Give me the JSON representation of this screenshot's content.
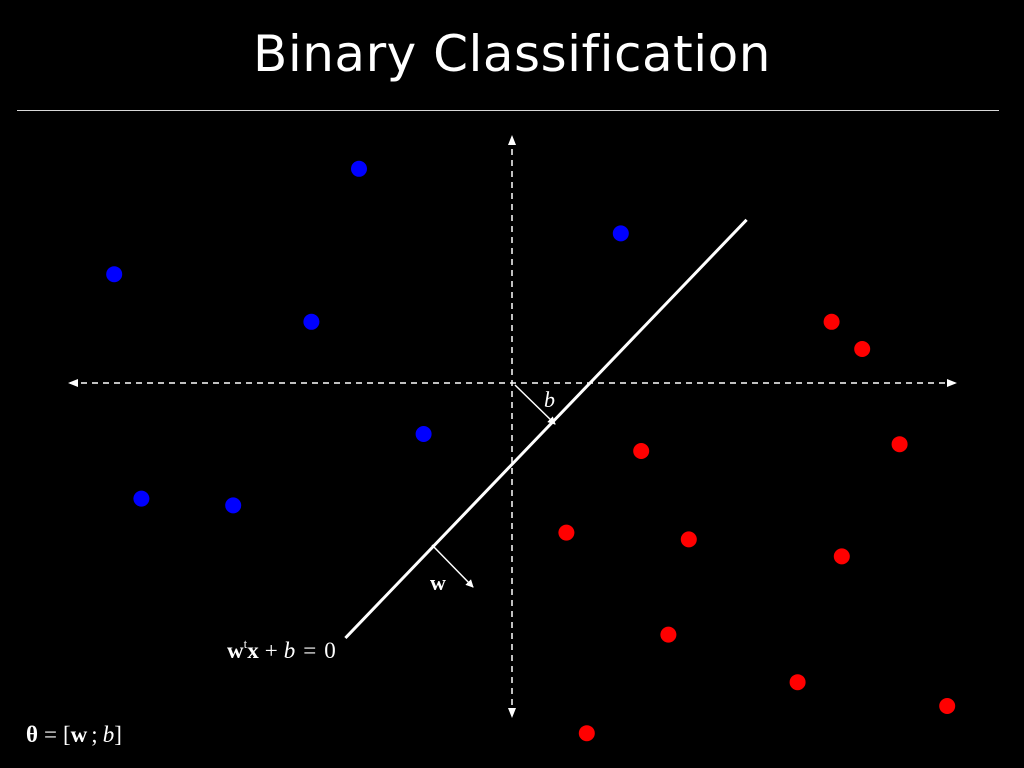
{
  "title": "Binary Classification",
  "colors": {
    "background": "#000000",
    "foreground": "#ffffff",
    "class_blue": "#0000ff",
    "class_red": "#ff0000"
  },
  "labels": {
    "bias": "b",
    "weight": "w",
    "boundary_w": "w",
    "boundary_t": "t",
    "boundary_x": "x",
    "boundary_plus": "+",
    "boundary_b": "b",
    "boundary_eq": "=",
    "boundary_zero": "0",
    "theta_symbol": "θ",
    "theta_eq": "=",
    "theta_open": "[",
    "theta_w": "w",
    "theta_sep": ";",
    "theta_b": "b",
    "theta_close": "]"
  },
  "points": {
    "blue": [
      {
        "x": -4.5,
        "y": 6.3
      },
      {
        "x": -11.7,
        "y": 3.2
      },
      {
        "x": -5.9,
        "y": 1.8
      },
      {
        "x": 3.2,
        "y": 4.4
      },
      {
        "x": -2.6,
        "y": -1.5
      },
      {
        "x": -10.9,
        "y": -3.4
      },
      {
        "x": -8.2,
        "y": -3.6
      }
    ],
    "red": [
      {
        "x": 9.4,
        "y": 1.8
      },
      {
        "x": 10.3,
        "y": 1.0
      },
      {
        "x": 11.4,
        "y": -1.8
      },
      {
        "x": 3.8,
        "y": -2.0
      },
      {
        "x": 1.6,
        "y": -4.4
      },
      {
        "x": 5.2,
        "y": -4.6
      },
      {
        "x": 9.7,
        "y": -5.1
      },
      {
        "x": 4.6,
        "y": -7.4
      },
      {
        "x": 8.4,
        "y": -8.8
      },
      {
        "x": 12.8,
        "y": -9.5
      },
      {
        "x": 2.2,
        "y": -10.3
      }
    ]
  },
  "boundary": {
    "x1": -4.9,
    "y1": -7.5,
    "x2": 6.9,
    "y2": 4.8
  }
}
